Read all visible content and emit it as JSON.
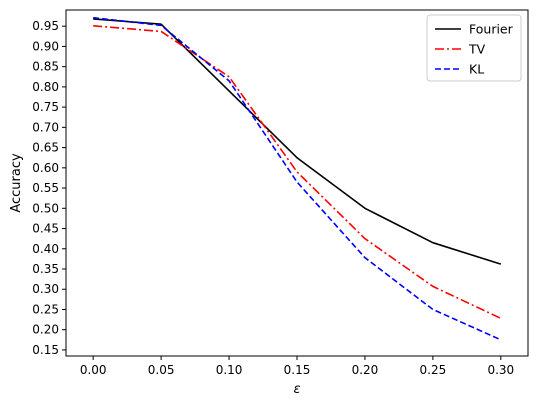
{
  "chart_data": {
    "type": "line",
    "title": "",
    "xlabel": "ε",
    "ylabel": "Accuracy",
    "x": [
      0.0,
      0.05,
      0.1,
      0.15,
      0.2,
      0.25,
      0.3
    ],
    "xlim": [
      -0.02,
      0.32
    ],
    "ylim": [
      0.135,
      0.99
    ],
    "xticks": [
      0.0,
      0.05,
      0.1,
      0.15,
      0.2,
      0.25,
      0.3
    ],
    "xtick_labels": [
      "0.00",
      "0.05",
      "0.10",
      "0.15",
      "0.20",
      "0.25",
      "0.30"
    ],
    "yticks": [
      0.15,
      0.2,
      0.25,
      0.3,
      0.35,
      0.4,
      0.45,
      0.5,
      0.55,
      0.6,
      0.65,
      0.7,
      0.75,
      0.8,
      0.85,
      0.9,
      0.95
    ],
    "ytick_labels": [
      "0.15",
      "0.20",
      "0.25",
      "0.30",
      "0.35",
      "0.40",
      "0.45",
      "0.50",
      "0.55",
      "0.60",
      "0.65",
      "0.70",
      "0.75",
      "0.80",
      "0.85",
      "0.90",
      "0.95"
    ],
    "grid": false,
    "legend_position": "top-right",
    "series": [
      {
        "name": "Fourier",
        "values": [
          0.968,
          0.955,
          0.79,
          0.625,
          0.5,
          0.415,
          0.362
        ],
        "color": "#000000",
        "line_style": "solid"
      },
      {
        "name": "TV",
        "values": [
          0.951,
          0.937,
          0.825,
          0.59,
          0.425,
          0.307,
          0.228
        ],
        "color": "#ff0000",
        "line_style": "dashdot"
      },
      {
        "name": "KL",
        "values": [
          0.971,
          0.952,
          0.815,
          0.565,
          0.378,
          0.25,
          0.175
        ],
        "color": "#0000ff",
        "line_style": "dashed"
      }
    ]
  }
}
